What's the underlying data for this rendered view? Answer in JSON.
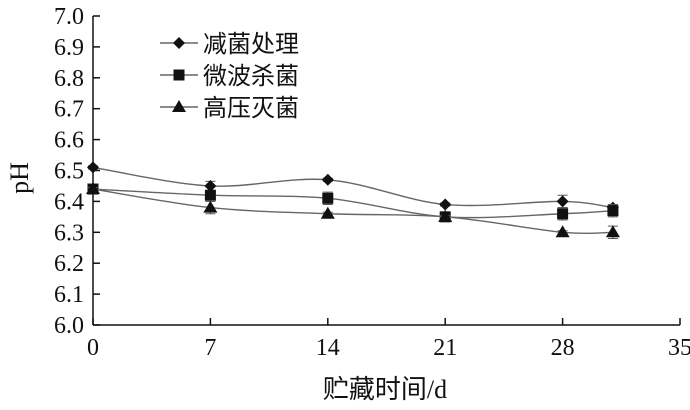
{
  "chart_data": {
    "type": "line",
    "title": "",
    "xlabel": "贮藏时间/d",
    "ylabel": "pH",
    "x": [
      0,
      7,
      14,
      21,
      28,
      31
    ],
    "xticks": [
      "0",
      "7",
      "14",
      "21",
      "28",
      "35"
    ],
    "yticks": [
      "6.0",
      "6.1",
      "6.2",
      "6.3",
      "6.4",
      "6.5",
      "6.6",
      "6.7",
      "6.8",
      "6.9",
      "7.0"
    ],
    "xlim": [
      0,
      35
    ],
    "ylim": [
      6.0,
      7.0
    ],
    "grid": false,
    "legend_position": "top-left",
    "series": [
      {
        "name": "减菌处理",
        "marker": "diamond",
        "values": [
          6.51,
          6.45,
          6.47,
          6.39,
          6.4,
          6.38
        ],
        "errors": [
          0.005,
          0.015,
          0.005,
          0.005,
          0.02,
          0.01
        ]
      },
      {
        "name": "微波杀菌",
        "marker": "square",
        "values": [
          6.44,
          6.42,
          6.41,
          6.35,
          6.36,
          6.37
        ],
        "errors": [
          0.005,
          0.01,
          0.02,
          0.005,
          0.02,
          0.02
        ]
      },
      {
        "name": "高压灭菌",
        "marker": "triangle",
        "values": [
          6.44,
          6.38,
          6.36,
          6.35,
          6.3,
          6.3
        ],
        "errors": [
          0.005,
          0.02,
          0.005,
          0.005,
          0.005,
          0.02
        ]
      }
    ]
  }
}
